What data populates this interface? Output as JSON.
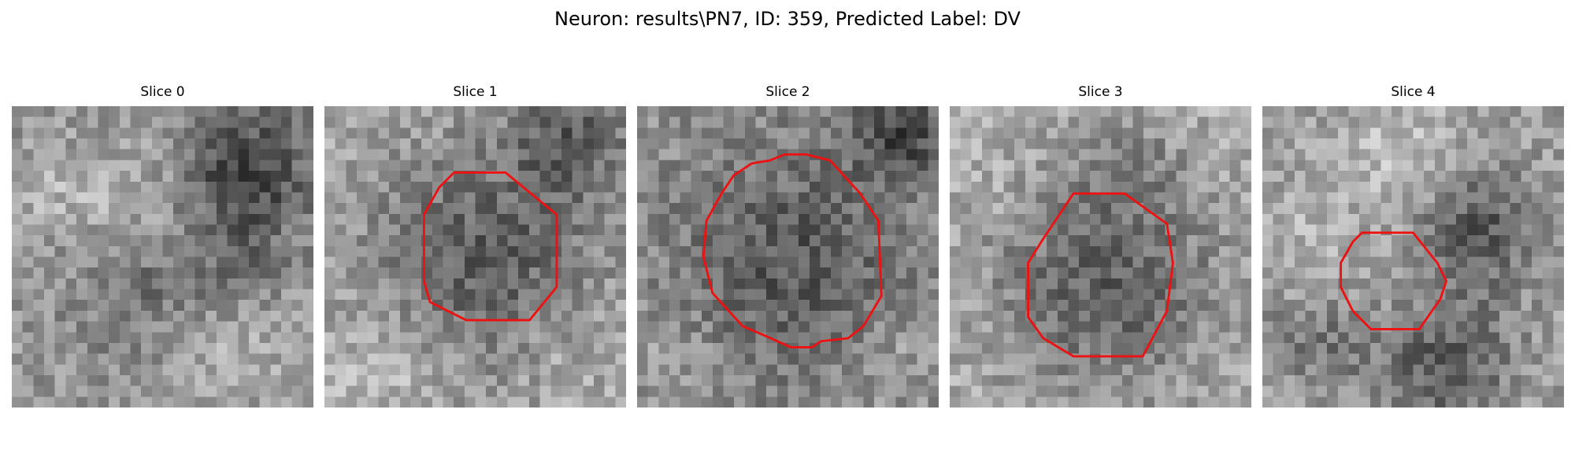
{
  "figure": {
    "title": "Neuron: results\\PN7, ID: 359, Predicted Label: DV"
  },
  "colors": {
    "contour": "#ee1111",
    "background": "#ffffff"
  },
  "slices": [
    {
      "label": "Slice 0",
      "has_contour": false
    },
    {
      "label": "Slice 1",
      "has_contour": true
    },
    {
      "label": "Slice 2",
      "has_contour": true
    },
    {
      "label": "Slice 3",
      "has_contour": true
    },
    {
      "label": "Slice 4",
      "has_contour": true
    }
  ]
}
